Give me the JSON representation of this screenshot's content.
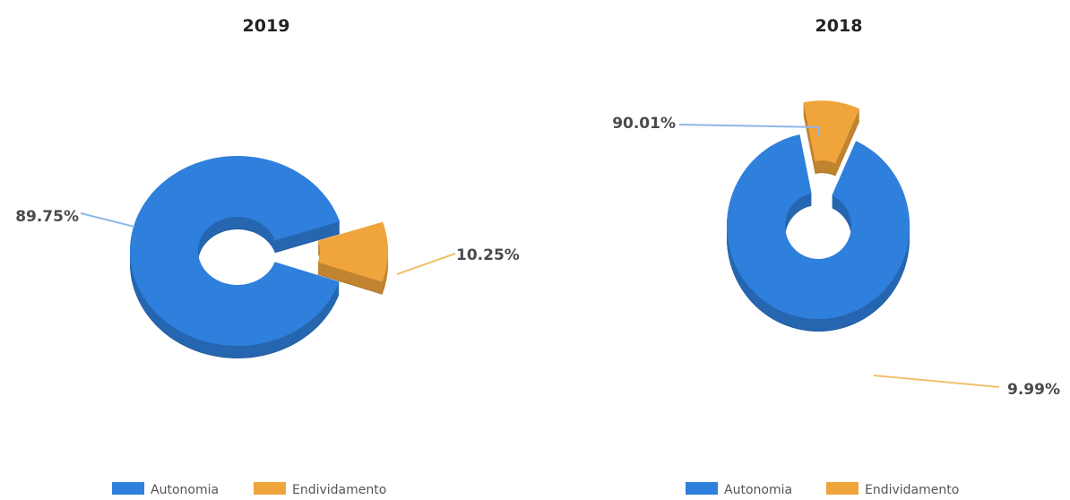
{
  "chart_data": [
    {
      "type": "pie",
      "variant": "3d-donut",
      "title": "2019",
      "categories": [
        "Autonomia",
        "Endividamento"
      ],
      "values": [
        89.75,
        10.25
      ],
      "labels": [
        "89.75%",
        "10.25%"
      ],
      "colors": [
        "#2f7fdc",
        "#f0a43c"
      ],
      "legend": "bottom"
    },
    {
      "type": "pie",
      "variant": "3d-donut",
      "title": "2018",
      "categories": [
        "Autonomia",
        "Endividamento"
      ],
      "values": [
        90.01,
        9.99
      ],
      "labels": [
        "90.01%",
        "9.99%"
      ],
      "colors": [
        "#2f7fdc",
        "#f0a43c"
      ],
      "legend": "bottom"
    }
  ]
}
